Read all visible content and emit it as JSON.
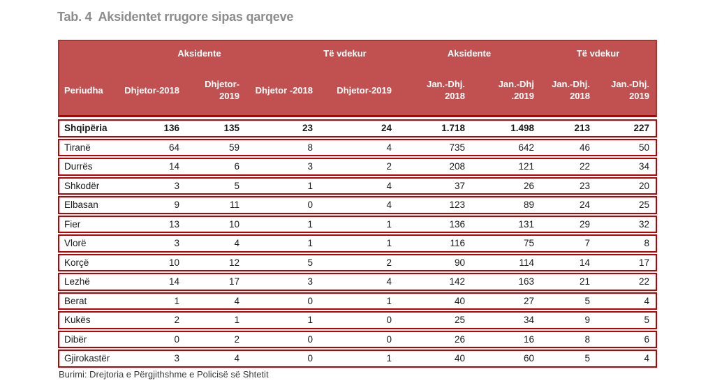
{
  "title": {
    "prefix": "Tab. 4",
    "caption": "Aksidentet rrugore sipas qarqeve"
  },
  "table": {
    "group_headers": [
      {
        "label": "Aksidente"
      },
      {
        "label": "Të vdekur"
      },
      {
        "label": "Aksidente"
      },
      {
        "label": "Të vdekur"
      }
    ],
    "column_headers": [
      "Periudha",
      "Dhjetor-2018",
      "Dhjetor-2019",
      "Dhjetor -2018",
      "Dhjetor-2019",
      "Jan.-Dhj.\n2018",
      "Jan.-Dhj\n.2019",
      "Jan.-Dhj.\n2018",
      "Jan.-Dhj.\n2019"
    ],
    "rows": [
      {
        "label": "Shqipëria",
        "bold": true,
        "values": [
          "136",
          "135",
          "23",
          "24",
          "1.718",
          "1.498",
          "213",
          "227"
        ]
      },
      {
        "label": "Tiranë",
        "bold": false,
        "values": [
          "64",
          "59",
          "8",
          "4",
          "735",
          "642",
          "46",
          "50"
        ]
      },
      {
        "label": "Durrës",
        "bold": false,
        "values": [
          "14",
          "6",
          "3",
          "2",
          "208",
          "121",
          "22",
          "34"
        ]
      },
      {
        "label": "Shkodër",
        "bold": false,
        "values": [
          "3",
          "5",
          "1",
          "4",
          "37",
          "26",
          "23",
          "20"
        ]
      },
      {
        "label": "Elbasan",
        "bold": false,
        "values": [
          "9",
          "11",
          "0",
          "4",
          "123",
          "89",
          "24",
          "25"
        ]
      },
      {
        "label": "Fier",
        "bold": false,
        "values": [
          "13",
          "10",
          "1",
          "1",
          "136",
          "131",
          "29",
          "32"
        ]
      },
      {
        "label": "Vlorë",
        "bold": false,
        "values": [
          "3",
          "4",
          "1",
          "1",
          "116",
          "75",
          "7",
          "8"
        ]
      },
      {
        "label": "Korçë",
        "bold": false,
        "values": [
          "10",
          "12",
          "5",
          "2",
          "90",
          "114",
          "14",
          "17"
        ]
      },
      {
        "label": "Lezhë",
        "bold": false,
        "values": [
          "14",
          "17",
          "3",
          "4",
          "142",
          "163",
          "21",
          "22"
        ]
      },
      {
        "label": "Berat",
        "bold": false,
        "values": [
          "1",
          "4",
          "0",
          "1",
          "40",
          "27",
          "5",
          "4"
        ]
      },
      {
        "label": "Kukës",
        "bold": false,
        "values": [
          "2",
          "1",
          "1",
          "0",
          "25",
          "34",
          "9",
          "5"
        ]
      },
      {
        "label": "Dibër",
        "bold": false,
        "values": [
          "0",
          "2",
          "0",
          "0",
          "26",
          "16",
          "8",
          "6"
        ]
      },
      {
        "label": "Gjirokastër",
        "bold": false,
        "values": [
          "3",
          "4",
          "0",
          "1",
          "40",
          "60",
          "5",
          "4"
        ]
      }
    ]
  },
  "source": "Burimi: Drejtoria e Përgjithshme e Policisë së Shtetit",
  "colors": {
    "header_background": "#c05150",
    "header_text": "#ffffff",
    "row_border": "#c00000",
    "title_text": "#8c8c8c",
    "body_text": "#1a1a1a",
    "source_text": "#3a3a3a"
  }
}
